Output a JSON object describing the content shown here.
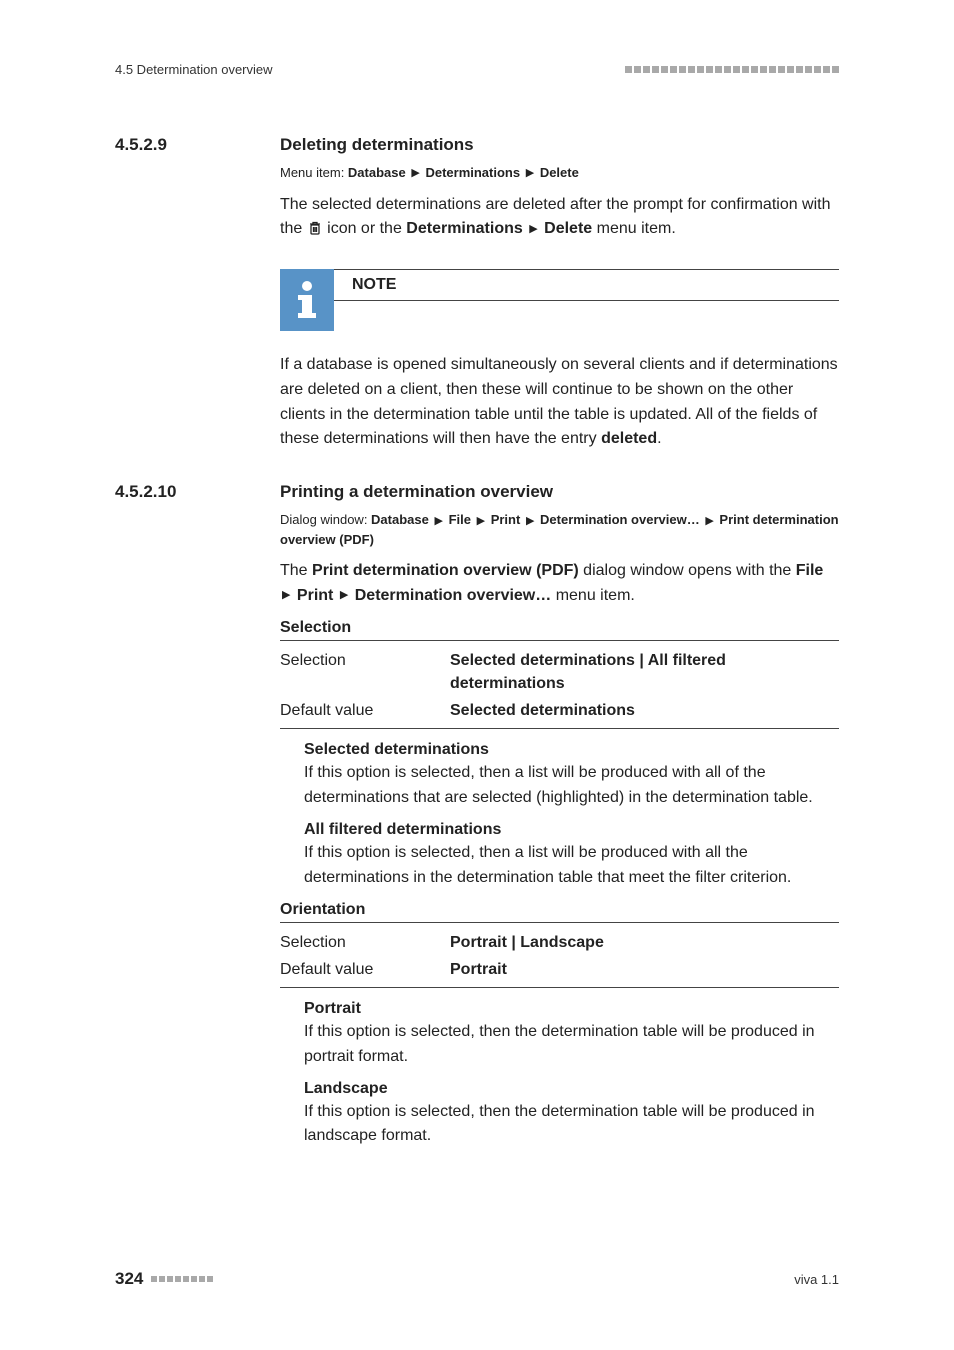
{
  "header": {
    "left": "4.5 Determination overview",
    "barCount": 24
  },
  "sections": [
    {
      "num": "4.5.2.9",
      "title": "Deleting determinations",
      "menuPrefix": "Menu item: ",
      "menuParts": [
        "Database",
        "Determinations",
        "Delete"
      ],
      "intro1a": "The selected determinations are deleted after the prompt for confirmation with the ",
      "intro1b": " icon or the ",
      "menuInline": [
        "Determinations",
        "Delete"
      ],
      "intro1c": " menu item.",
      "noteLabel": "NOTE",
      "noteBody": "If a database is opened simultaneously on several clients and if determinations are deleted on a client, then these will continue to be shown on the other clients in the determination table until the table is updated. All of the fields of these determinations will then have the entry ",
      "noteBold": "deleted",
      "notePeriod": "."
    },
    {
      "num": "4.5.2.10",
      "title": "Printing a determination overview",
      "dialogPrefix": "Dialog window: ",
      "dialogParts": [
        "Database",
        "File",
        "Print",
        "Determination overview…",
        "Print determination overview (PDF)"
      ],
      "para1a": "The ",
      "para1bold": "Print determination overview (PDF)",
      "para1b": " dialog window opens with the ",
      "para1menu": [
        "File",
        "Print",
        "Determination overview…"
      ],
      "para1c": " menu item.",
      "groups": [
        {
          "heading": "Selection",
          "rows": [
            {
              "k": "Selection",
              "v": "Selected determinations | All filtered determinations"
            },
            {
              "k": "Default value",
              "v": "Selected determinations"
            }
          ],
          "options": [
            {
              "label": "Selected determinations",
              "desc": "If this option is selected, then a list will be produced with all of the determinations that are selected (highlighted) in the determination table."
            },
            {
              "label": "All filtered determinations",
              "desc": "If this option is selected, then a list will be produced with all the determinations in the determination table that meet the filter criterion."
            }
          ]
        },
        {
          "heading": "Orientation",
          "rows": [
            {
              "k": "Selection",
              "v": "Portrait | Landscape"
            },
            {
              "k": "Default value",
              "v": "Portrait"
            }
          ],
          "options": [
            {
              "label": "Portrait",
              "desc": "If this option is selected, then the determination table will be produced in portrait format."
            },
            {
              "label": "Landscape",
              "desc": "If this option is selected, then the determination table will be produced in landscape format."
            }
          ]
        }
      ]
    }
  ],
  "footer": {
    "page": "324",
    "barCount": 8,
    "right": "viva 1.1"
  },
  "colors": {
    "noteIconBg": "#5893c7",
    "squareGray": "#a9a9a9"
  }
}
